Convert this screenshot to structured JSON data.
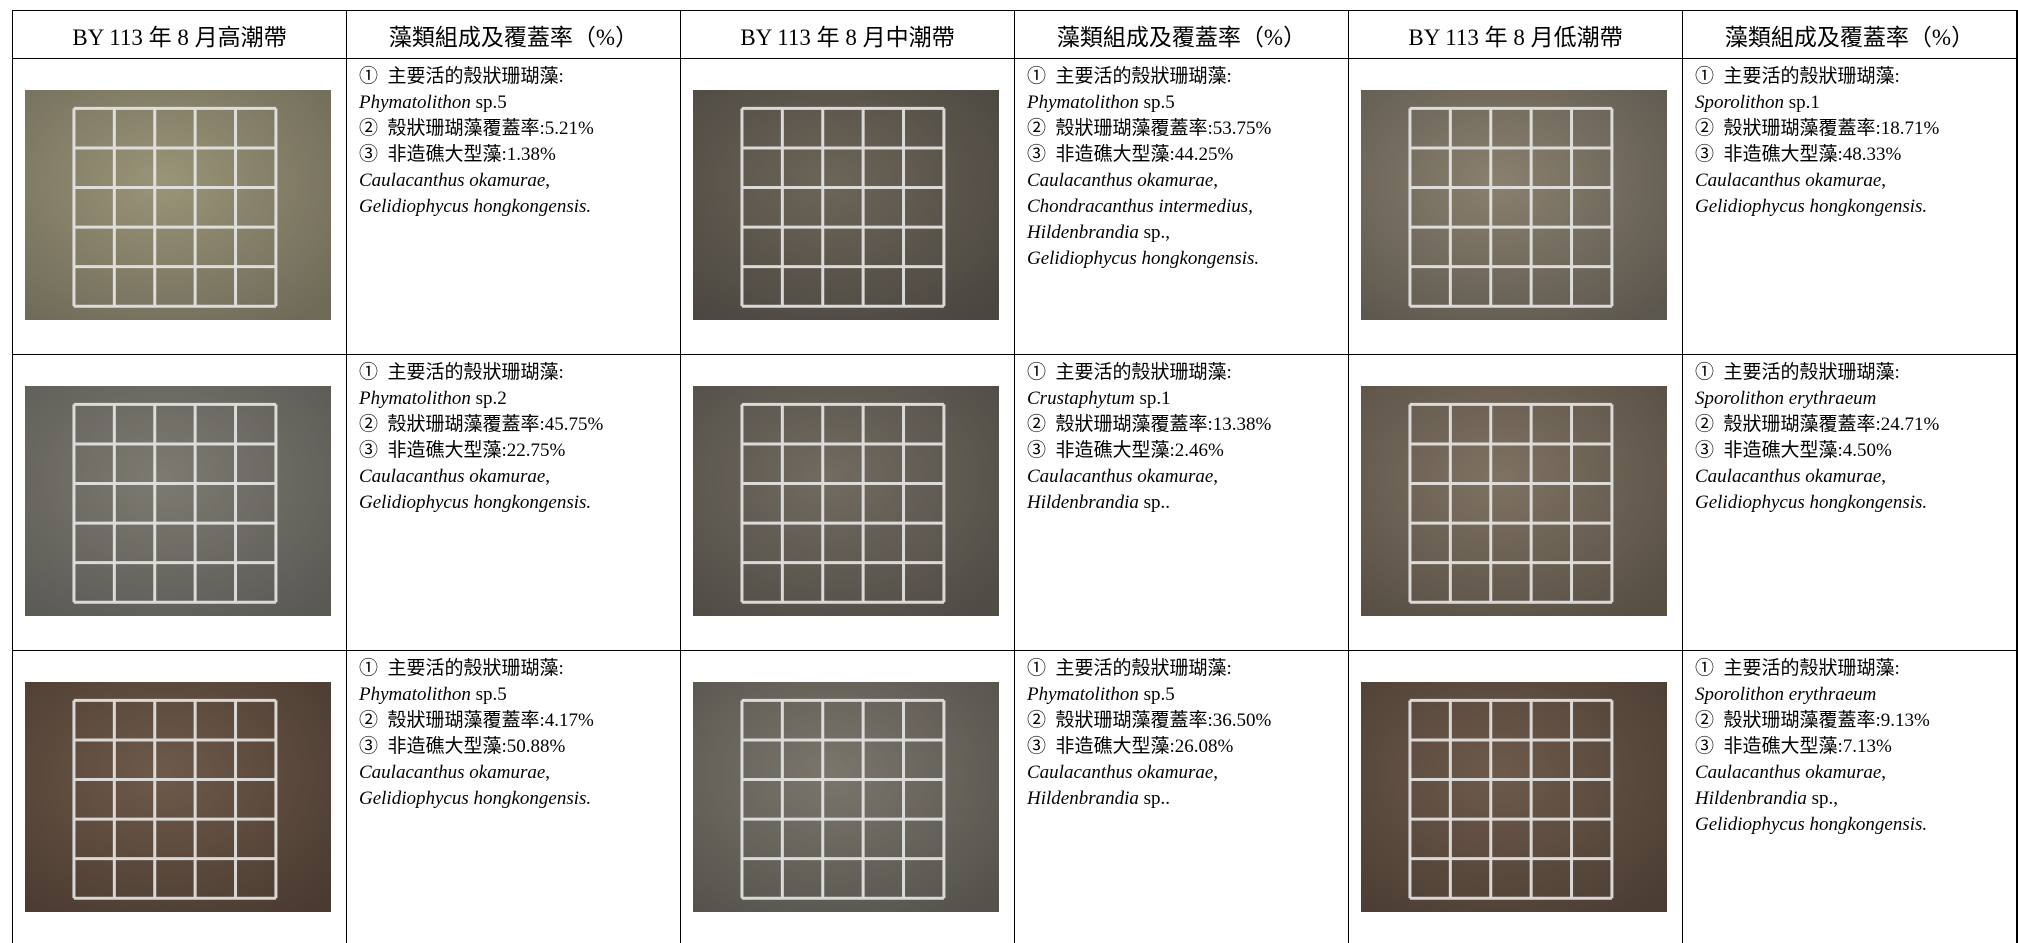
{
  "header": [
    "BY 113 年 8 月高潮帶",
    "藻類組成及覆蓋率（%）",
    "BY 113 年 8 月中潮帶",
    "藻類組成及覆蓋率（%）",
    "BY 113 年 8 月低潮帶",
    "藻類組成及覆蓋率（%）"
  ],
  "rows": [
    {
      "cells": [
        {
          "lines": [
            {
              "plain": "①  主要活的殼狀珊瑚藻:"
            },
            {
              "italic": "Phymatolithon",
              "plain": " sp.5"
            },
            {
              "plain": "②  殼狀珊瑚藻覆蓋率:5.21%"
            },
            {
              "plain": "③  非造礁大型藻:1.38%"
            },
            {
              "italic": "Caulacanthus okamurae",
              "plain": ","
            },
            {
              "italic": "Gelidiophycus hongkongensis."
            }
          ]
        },
        {
          "lines": [
            {
              "plain": "①  主要活的殼狀珊瑚藻:"
            },
            {
              "italic": "Phymatolithon",
              "plain": " sp.5"
            },
            {
              "plain": "②  殼狀珊瑚藻覆蓋率:53.75%"
            },
            {
              "plain": "③  非造礁大型藻:44.25%"
            },
            {
              "italic": "Caulacanthus okamurae",
              "plain": ","
            },
            {
              "italic": "Chondracanthus intermedius,"
            },
            {
              "italic": "Hildenbrandia",
              "plain": " sp.,"
            },
            {
              "italic": "Gelidiophycus hongkongensis."
            }
          ]
        },
        {
          "lines": [
            {
              "plain": "①  主要活的殼狀珊瑚藻:"
            },
            {
              "italic": "Sporolithon",
              "plain": " sp.1"
            },
            {
              "plain": "②  殼狀珊瑚藻覆蓋率:18.71%"
            },
            {
              "plain": "③  非造礁大型藻:48.33%"
            },
            {
              "italic": "Caulacanthus okamurae",
              "plain": ","
            },
            {
              "italic": "Gelidiophycus hongkongensis."
            }
          ]
        }
      ]
    },
    {
      "cells": [
        {
          "lines": [
            {
              "plain": "①  主要活的殼狀珊瑚藻:"
            },
            {
              "italic": "Phymatolithon",
              "plain": " sp.2"
            },
            {
              "plain": "②  殼狀珊瑚藻覆蓋率:45.75%"
            },
            {
              "plain": "③  非造礁大型藻:22.75%"
            },
            {
              "italic": "Caulacanthus okamurae",
              "plain": ","
            },
            {
              "italic": "Gelidiophycus hongkongensis."
            }
          ]
        },
        {
          "lines": [
            {
              "plain": "①  主要活的殼狀珊瑚藻:"
            },
            {
              "italic": "Crustaphytum",
              "plain": " sp.1"
            },
            {
              "plain": "②  殼狀珊瑚藻覆蓋率:13.38%"
            },
            {
              "plain": "③  非造礁大型藻:2.46%"
            },
            {
              "italic": "Caulacanthus okamurae",
              "plain": ","
            },
            {
              "italic": "Hildenbrandia",
              "plain": " sp.."
            }
          ]
        },
        {
          "lines": [
            {
              "plain": "①  主要活的殼狀珊瑚藻:"
            },
            {
              "italic": "Sporolithon erythraeum"
            },
            {
              "plain": "②  殼狀珊瑚藻覆蓋率:24.71%"
            },
            {
              "plain": "③  非造礁大型藻:4.50%"
            },
            {
              "italic": "Caulacanthus okamurae",
              "plain": ","
            },
            {
              "italic": "Gelidiophycus hongkongensis."
            }
          ]
        }
      ]
    },
    {
      "cells": [
        {
          "lines": [
            {
              "plain": "①  主要活的殼狀珊瑚藻:"
            },
            {
              "italic": "Phymatolithon",
              "plain": " sp.5"
            },
            {
              "plain": "②  殼狀珊瑚藻覆蓋率:4.17%"
            },
            {
              "plain": "③  非造礁大型藻:50.88%"
            },
            {
              "italic": "Caulacanthus okamurae",
              "plain": ","
            },
            {
              "italic": "Gelidiophycus hongkongensis."
            }
          ]
        },
        {
          "lines": [
            {
              "plain": "①  主要活的殼狀珊瑚藻:"
            },
            {
              "italic": "Phymatolithon",
              "plain": " sp.5"
            },
            {
              "plain": "②  殼狀珊瑚藻覆蓋率:36.50%"
            },
            {
              "plain": "③  非造礁大型藻:26.08%"
            },
            {
              "italic": "Caulacanthus okamurae",
              "plain": ","
            },
            {
              "italic": "Hildenbrandia",
              "plain": " sp.."
            }
          ]
        },
        {
          "lines": [
            {
              "plain": "①  主要活的殼狀珊瑚藻:"
            },
            {
              "italic": "Sporolithon erythraeum"
            },
            {
              "plain": "②  殼狀珊瑚藻覆蓋率:9.13%"
            },
            {
              "plain": "③  非造礁大型藻:7.13%"
            },
            {
              "italic": "Caulacanthus okamurae",
              "plain": ","
            },
            {
              "italic": "Hildenbrandia",
              "plain": " sp.,"
            },
            {
              "italic": "Gelidiophycus hongkongensis."
            }
          ]
        }
      ]
    }
  ]
}
